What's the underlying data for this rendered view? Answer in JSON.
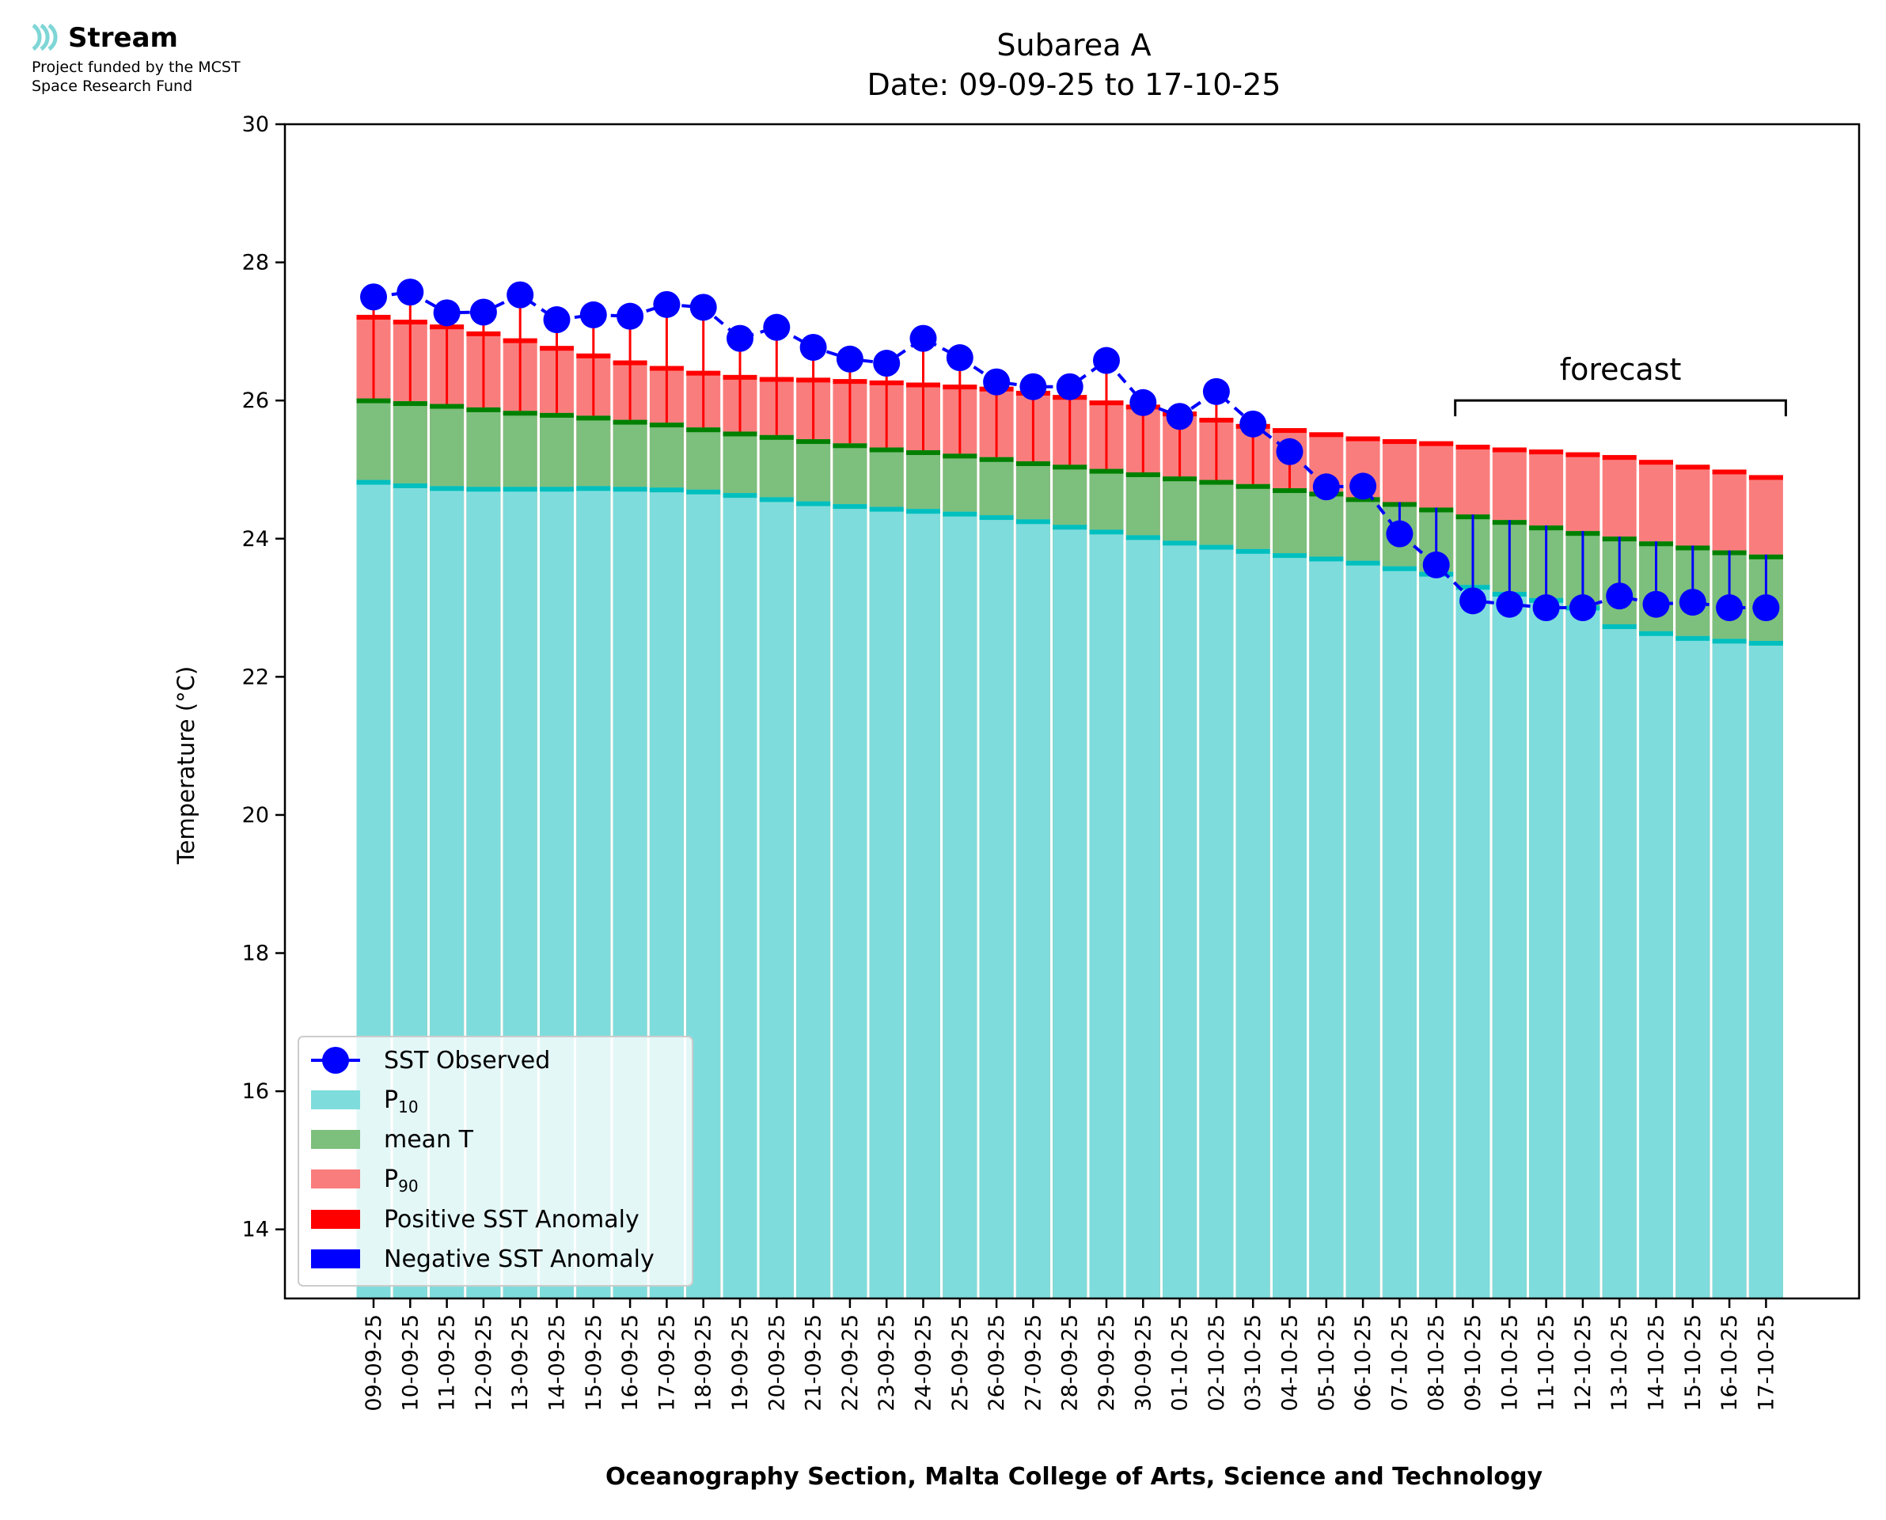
{
  "logo": {
    "name": "Stream",
    "line1": "Project funded by the MCST",
    "line2": "Space Research Fund",
    "color": "#7fd6d6"
  },
  "chart_data": {
    "type": "bar",
    "title": "Subarea A",
    "subtitle": "Date: 09-09-25 to 17-10-25",
    "xlabel": "Oceanography Section, Malta College of Arts, Science and Technology",
    "ylabel": "Temperature (°C)",
    "ylim": [
      13,
      30
    ],
    "yticks": [
      14,
      16,
      18,
      20,
      22,
      24,
      26,
      28,
      30
    ],
    "grid": false,
    "legend_position": "lower-left",
    "categories": [
      "09-09-25",
      "10-09-25",
      "11-09-25",
      "12-09-25",
      "13-09-25",
      "14-09-25",
      "15-09-25",
      "16-09-25",
      "17-09-25",
      "18-09-25",
      "19-09-25",
      "20-09-25",
      "21-09-25",
      "22-09-25",
      "23-09-25",
      "24-09-25",
      "25-09-25",
      "26-09-25",
      "27-09-25",
      "28-09-25",
      "29-09-25",
      "30-09-25",
      "01-10-25",
      "02-10-25",
      "03-10-25",
      "04-10-25",
      "05-10-25",
      "06-10-25",
      "07-10-25",
      "08-10-25",
      "09-10-25",
      "10-10-25",
      "11-10-25",
      "12-10-25",
      "13-10-25",
      "14-10-25",
      "15-10-25",
      "16-10-25",
      "17-10-25"
    ],
    "series": [
      {
        "name": "SST Observed",
        "color": "#0000ff",
        "values": [
          27.5,
          27.57,
          27.27,
          27.28,
          27.53,
          27.17,
          27.24,
          27.22,
          27.39,
          27.35,
          26.9,
          27.06,
          26.77,
          26.6,
          26.54,
          26.9,
          26.62,
          26.27,
          26.2,
          26.2,
          26.58,
          25.97,
          25.77,
          26.13,
          25.66,
          25.26,
          24.75,
          24.76,
          24.07,
          23.62,
          23.1,
          23.05,
          23.0,
          23.0,
          23.17,
          23.05,
          23.08,
          23.0,
          23.0
        ]
      },
      {
        "name": "P10",
        "color": "#7fdcdc",
        "values": [
          24.85,
          24.8,
          24.76,
          24.75,
          24.75,
          24.75,
          24.76,
          24.75,
          24.74,
          24.71,
          24.66,
          24.6,
          24.54,
          24.5,
          24.46,
          24.43,
          24.39,
          24.34,
          24.28,
          24.2,
          24.13,
          24.05,
          23.97,
          23.91,
          23.85,
          23.79,
          23.74,
          23.68,
          23.6,
          23.52,
          23.33,
          23.23,
          23.14,
          23.03,
          22.76,
          22.66,
          22.59,
          22.55,
          22.52
        ]
      },
      {
        "name": "mean T",
        "color": "#7dbf7d",
        "values": [
          26.03,
          25.99,
          25.95,
          25.9,
          25.85,
          25.82,
          25.78,
          25.72,
          25.68,
          25.61,
          25.55,
          25.5,
          25.44,
          25.38,
          25.32,
          25.28,
          25.23,
          25.18,
          25.12,
          25.07,
          25.01,
          24.96,
          24.9,
          24.85,
          24.79,
          24.73,
          24.68,
          24.6,
          24.53,
          24.45,
          24.35,
          24.27,
          24.19,
          24.11,
          24.03,
          23.96,
          23.9,
          23.83,
          23.77
        ]
      },
      {
        "name": "P90",
        "color": "#fa7d7d",
        "values": [
          27.24,
          27.17,
          27.1,
          27.0,
          26.9,
          26.79,
          26.68,
          26.58,
          26.5,
          26.43,
          26.37,
          26.34,
          26.33,
          26.31,
          26.29,
          26.26,
          26.23,
          26.2,
          26.14,
          26.08,
          26.0,
          25.94,
          25.84,
          25.75,
          25.66,
          25.6,
          25.54,
          25.48,
          25.44,
          25.41,
          25.36,
          25.32,
          25.29,
          25.25,
          25.21,
          25.14,
          25.07,
          25.0,
          24.92
        ]
      }
    ],
    "anomaly_legend": [
      {
        "name": "Positive SST Anomaly",
        "color": "#ff0000"
      },
      {
        "name": "Negative SST Anomaly",
        "color": "#0000ff"
      }
    ],
    "annotation": {
      "text": "forecast",
      "from": "08-10-25",
      "to": "17-10-25"
    }
  }
}
